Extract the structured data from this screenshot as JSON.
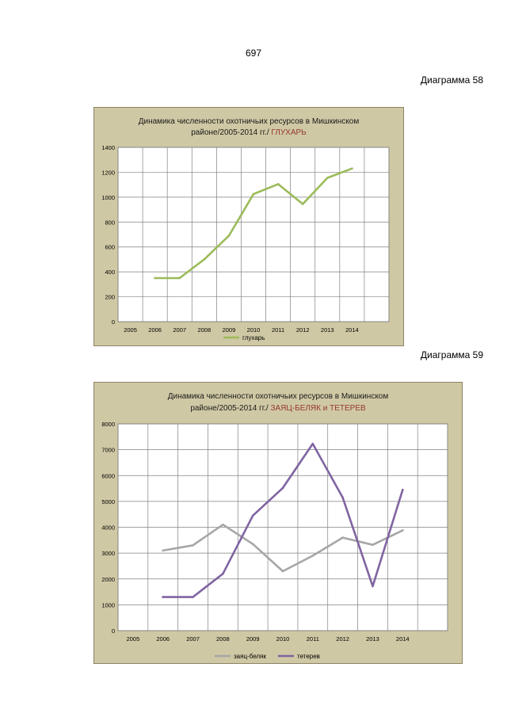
{
  "page_number": "697",
  "diagram_labels": [
    "Диаграмма 58",
    "Диаграмма 59"
  ],
  "chart_data": [
    {
      "type": "line",
      "title_line1": "Динамика численности охотничьих ресурсов  в  Мишкинском",
      "title_line2": "районе/2005-2014 гг./",
      "title_highlight": "ГЛУХАРЬ",
      "categories": [
        "2005",
        "2006",
        "2007",
        "2008",
        "2009",
        "2010",
        "2011",
        "2012",
        "2013",
        "2014"
      ],
      "ylim": [
        0,
        1400
      ],
      "yticks": [
        "0",
        "200",
        "400",
        "600",
        "800",
        "1000",
        "1200",
        "1400"
      ],
      "series": [
        {
          "name": "глухарь",
          "color": "#9bbb59",
          "values": [
            null,
            350,
            350,
            500,
            690,
            1025,
            1105,
            945,
            1155,
            1230
          ]
        }
      ],
      "legend": "bottom"
    },
    {
      "type": "line",
      "title_line1": "Динамика численности  охотничьих ресурсов   в  Мишкинском",
      "title_line2": "районе/2005-2014  гг./",
      "title_highlight": "ЗАЯЦ-БЕЛЯК и ТЕТЕРЕВ",
      "categories": [
        "2005",
        "2006",
        "2007",
        "2008",
        "2009",
        "2010",
        "2011",
        "2012",
        "2013",
        "2014"
      ],
      "ylim": [
        0,
        8000
      ],
      "yticks": [
        "0",
        "1000",
        "2000",
        "3000",
        "4000",
        "5000",
        "6000",
        "7000",
        "8000"
      ],
      "series": [
        {
          "name": "заяц-беляк",
          "color": "#a6a6a6",
          "values": [
            null,
            3100,
            3300,
            4100,
            3350,
            2300,
            2900,
            3600,
            3320,
            3880
          ]
        },
        {
          "name": "тетерев",
          "color": "#8064a2",
          "values": [
            null,
            1300,
            1300,
            2200,
            4450,
            5520,
            7230,
            5150,
            1720,
            5450
          ]
        }
      ],
      "legend": "bottom"
    }
  ]
}
